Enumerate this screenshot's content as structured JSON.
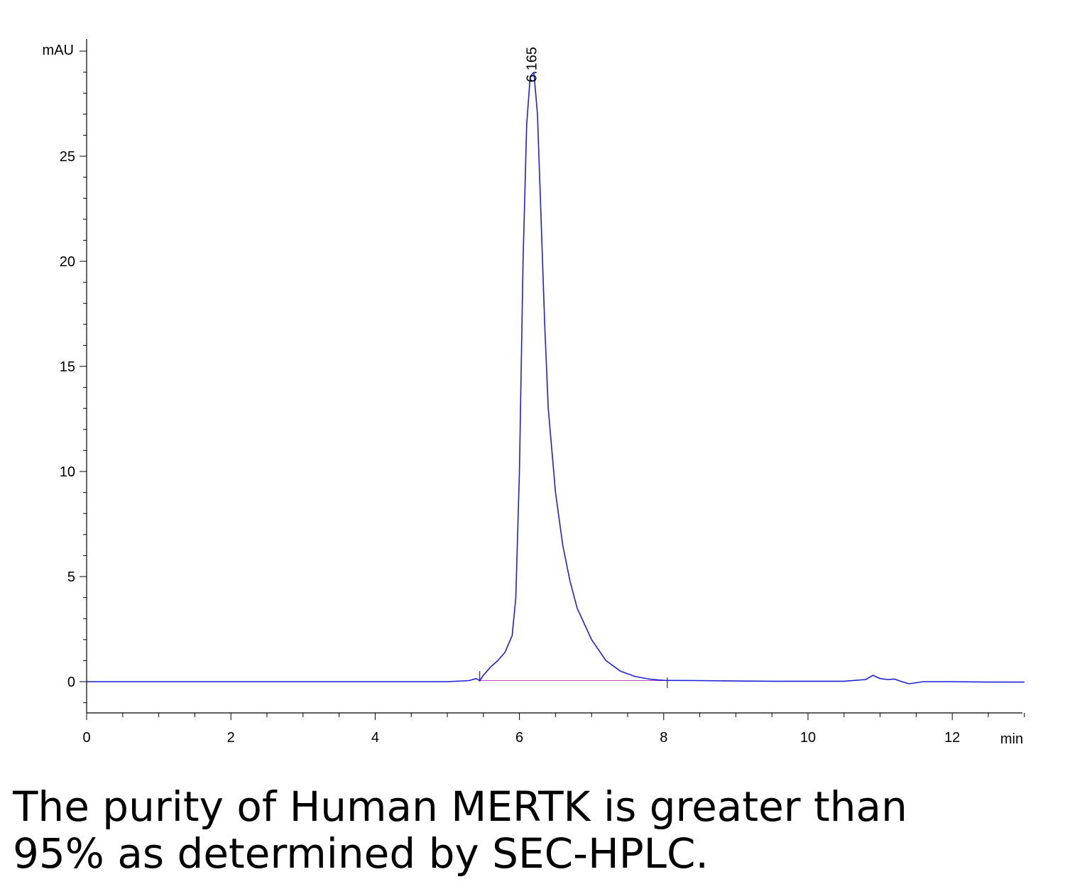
{
  "chart_data": {
    "type": "line",
    "xlabel": "min",
    "ylabel": "mAU",
    "xlim": [
      0,
      13
    ],
    "ylim": [
      -1.5,
      30
    ],
    "x_ticks": [
      0,
      2,
      4,
      6,
      8,
      10,
      12
    ],
    "y_ticks": [
      0,
      5,
      10,
      15,
      20,
      25
    ],
    "x_tick_labels": [
      "0",
      "2",
      "4",
      "6",
      "8",
      "10",
      "12"
    ],
    "y_tick_labels": [
      "0",
      "5",
      "10",
      "15",
      "20",
      "25"
    ],
    "grid": false,
    "line_color": "#1f1fd6",
    "baseline_color": "#c04cc0",
    "peak_label": "6.165",
    "peak_label_x": 6.165,
    "baseline_segment": [
      5.45,
      8.05
    ],
    "series": [
      {
        "x": [
          0,
          1,
          2,
          3,
          4,
          5.0,
          5.3,
          5.4,
          5.45,
          5.5,
          5.6,
          5.7,
          5.8,
          5.9,
          5.95,
          6.0,
          6.05,
          6.1,
          6.15,
          6.2,
          6.25,
          6.3,
          6.35,
          6.4,
          6.5,
          6.6,
          6.7,
          6.8,
          7.0,
          7.2,
          7.4,
          7.6,
          7.8,
          8.0,
          8.5,
          9.0,
          9.5,
          10.0,
          10.5,
          10.8,
          10.9,
          11.0,
          11.1,
          11.2,
          11.3,
          11.4,
          11.6,
          12.0,
          12.5,
          13.0
        ],
        "y": [
          0,
          0,
          0,
          0,
          0,
          0,
          0.05,
          0.15,
          0.05,
          0.3,
          0.7,
          1.0,
          1.4,
          2.2,
          4.0,
          10.0,
          20.0,
          26.5,
          28.8,
          29.0,
          27.0,
          22.0,
          17.0,
          13.0,
          9.0,
          6.5,
          4.8,
          3.5,
          2.0,
          1.0,
          0.5,
          0.25,
          0.12,
          0.06,
          0.05,
          0.03,
          0.02,
          0.02,
          0.02,
          0.1,
          0.3,
          0.15,
          0.1,
          0.12,
          0.0,
          -0.1,
          0.0,
          0.0,
          -0.02,
          -0.02
        ]
      }
    ]
  },
  "caption": {
    "line1": "The purity of Human MERTK is greater than",
    "line2": "95% as determined by SEC-HPLC."
  }
}
